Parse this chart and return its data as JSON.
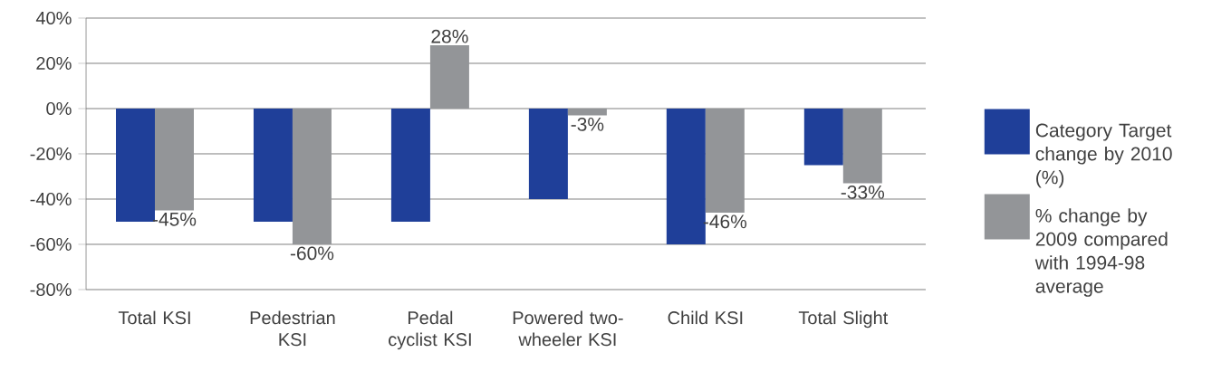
{
  "chart_data": {
    "type": "bar",
    "categories": [
      "Total KSI",
      "Pedestrian KSI",
      "Pedal cyclist KSI",
      "Powered two-wheeler KSI",
      "Child KSI",
      "Total Slight"
    ],
    "series": [
      {
        "name": "Category Target change by 2010 (%)",
        "color": "#1f3f99",
        "values": [
          -50,
          -50,
          -50,
          -40,
          -60,
          -25
        ]
      },
      {
        "name": "% change by 2009 compared with 1994-98 average",
        "color": "#939598",
        "values": [
          -45,
          -60,
          28,
          -3,
          -46,
          -33
        ],
        "value_labels": [
          "-45%",
          "-60%",
          "28%",
          "-3%",
          "-46%",
          "-33%"
        ]
      }
    ],
    "ylim": [
      -80,
      40
    ],
    "yticks": [
      {
        "value": -80,
        "label": "-80%"
      },
      {
        "value": -60,
        "label": "-60%"
      },
      {
        "value": -40,
        "label": "-40%"
      },
      {
        "value": -20,
        "label": "-20%"
      },
      {
        "value": 0,
        "label": "0%"
      },
      {
        "value": 20,
        "label": "20%"
      },
      {
        "value": 40,
        "label": "40%"
      }
    ],
    "grid": "y",
    "legend": "right"
  }
}
